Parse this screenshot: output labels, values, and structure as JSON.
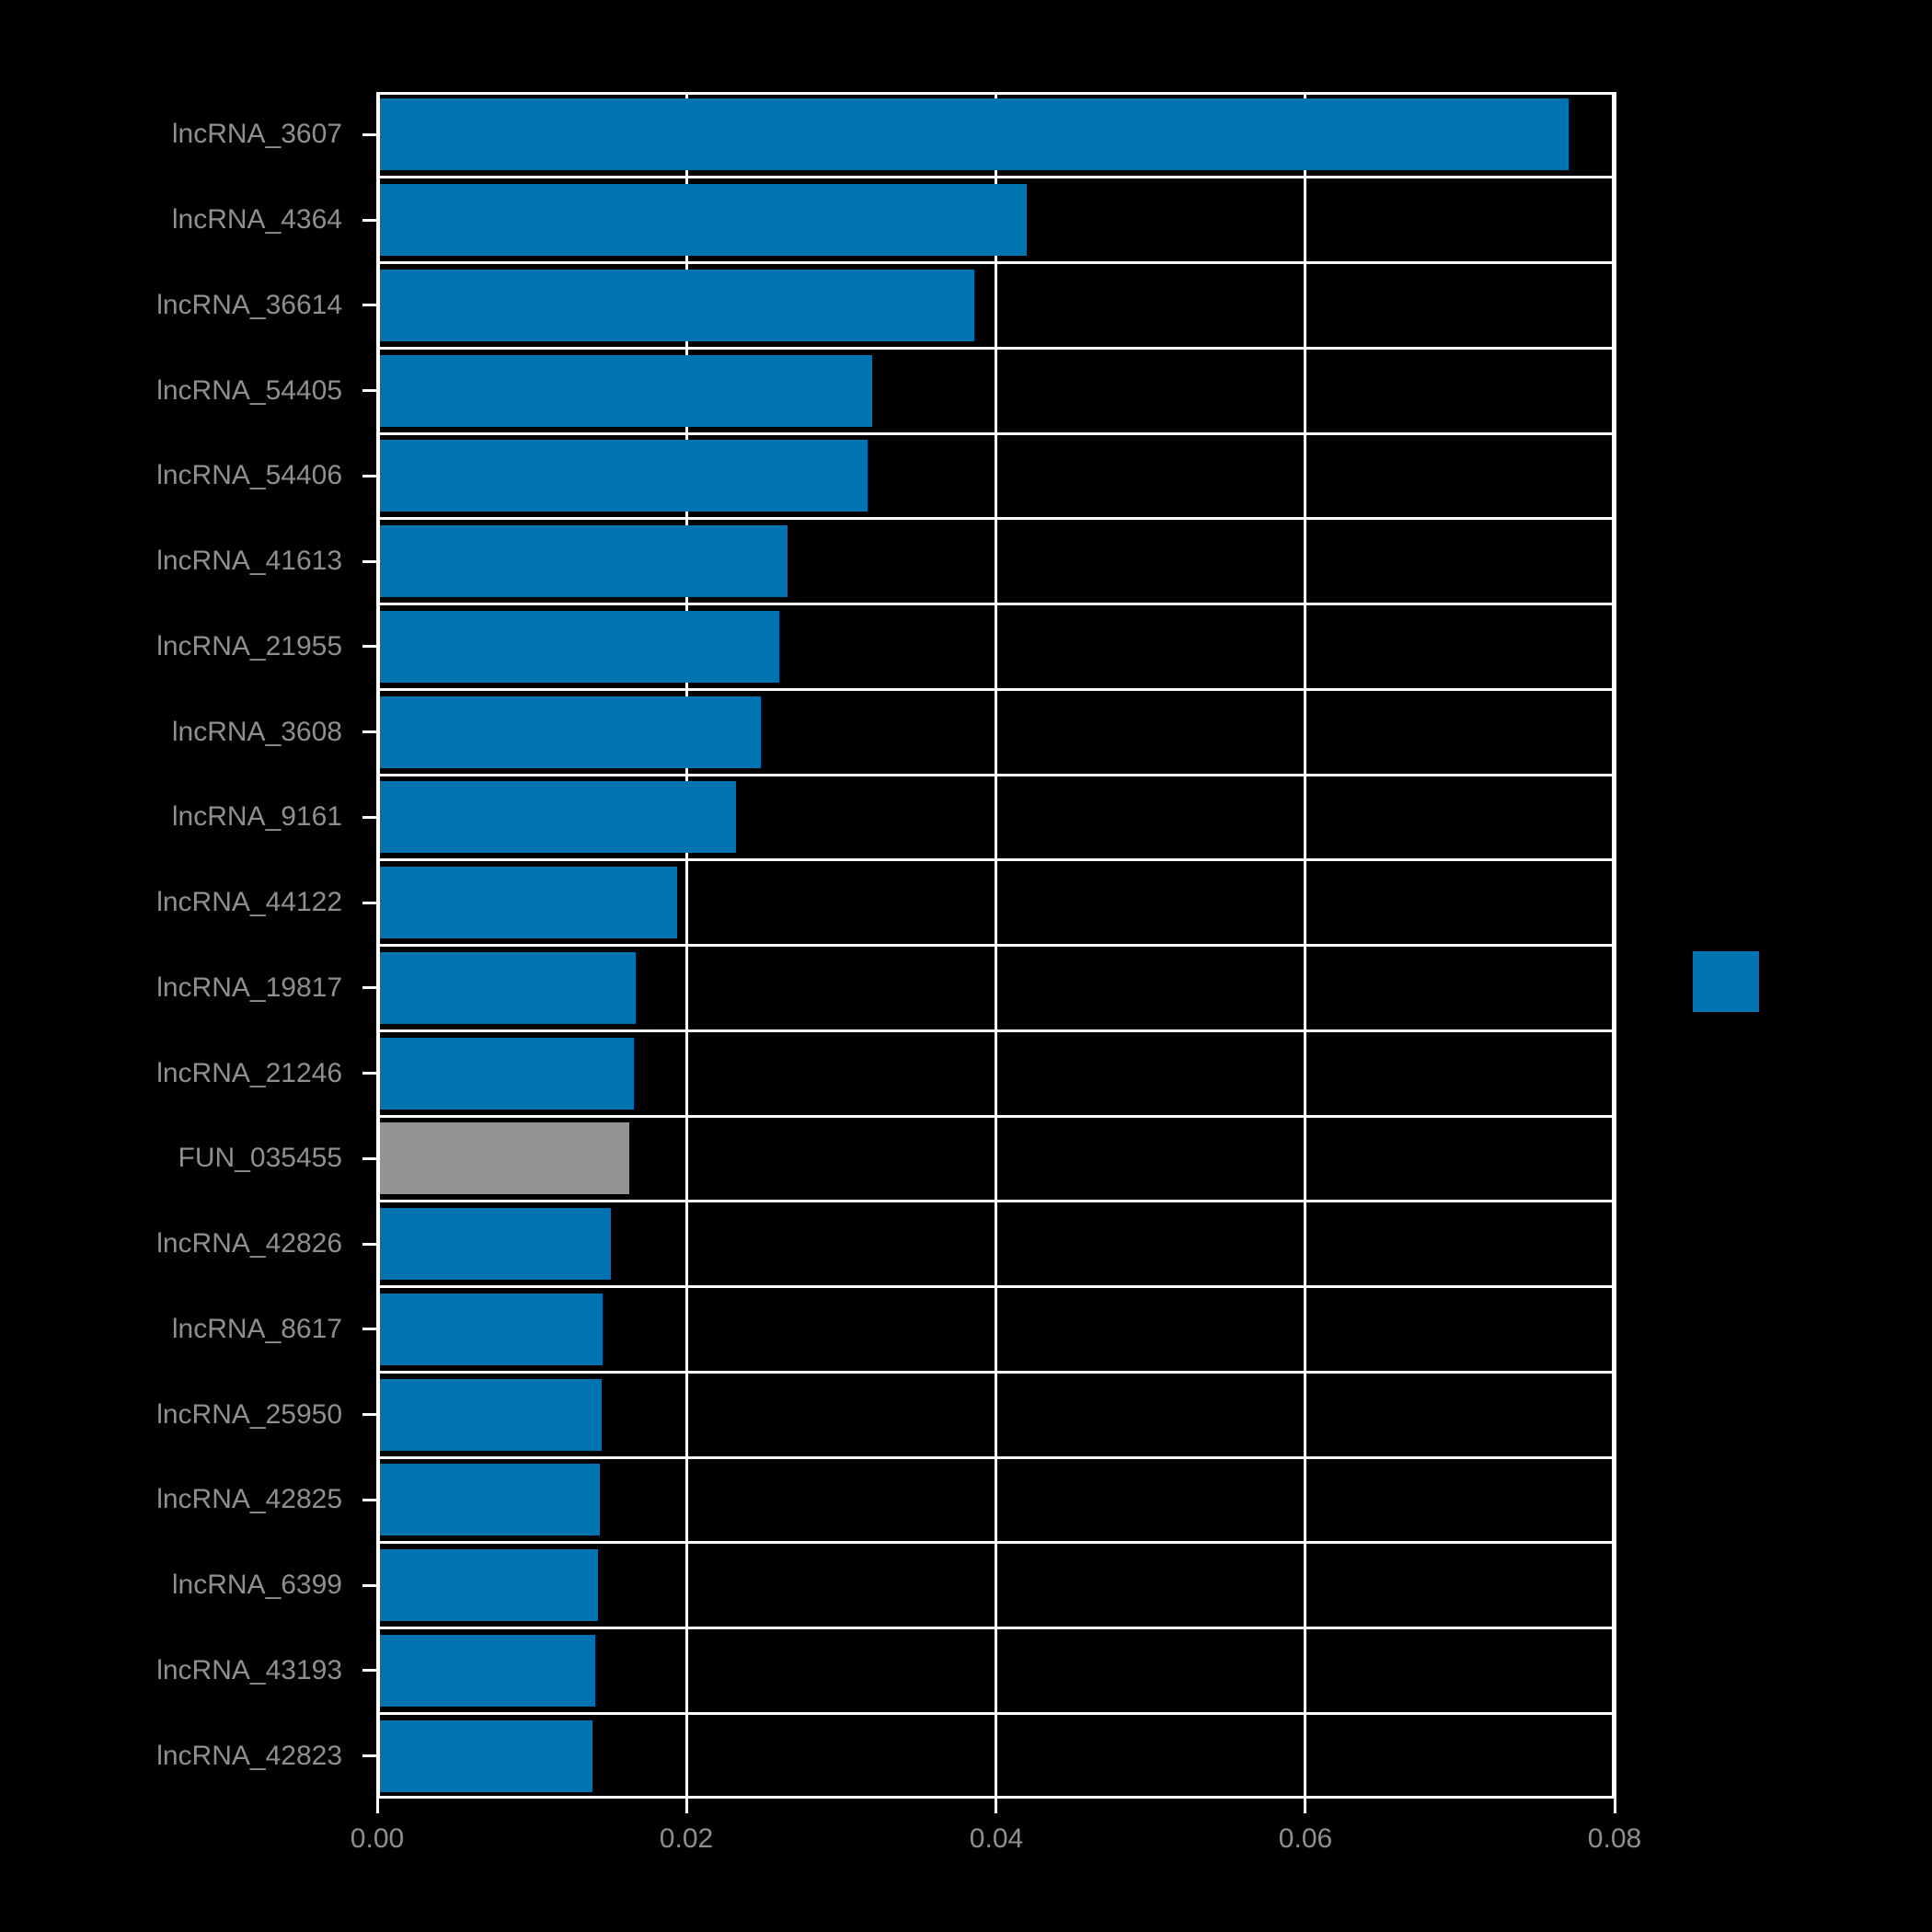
{
  "chart_data": {
    "type": "bar",
    "orientation": "horizontal",
    "title": "",
    "xlabel": "",
    "ylabel": "",
    "categories": [
      "lncRNA_3607",
      "lncRNA_4364",
      "lncRNA_36614",
      "lncRNA_54405",
      "lncRNA_54406",
      "lncRNA_41613",
      "lncRNA_21955",
      "lncRNA_3608",
      "lncRNA_9161",
      "lncRNA_44122",
      "lncRNA_19817",
      "lncRNA_21246",
      "FUN_035455",
      "lncRNA_42826",
      "lncRNA_8617",
      "lncRNA_25950",
      "lncRNA_42825",
      "lncRNA_6399",
      "lncRNA_43193",
      "lncRNA_42823"
    ],
    "values": [
      0.077,
      0.042,
      0.0386,
      0.032,
      0.0317,
      0.0265,
      0.026,
      0.0248,
      0.0232,
      0.0194,
      0.0167,
      0.0166,
      0.0163,
      0.0151,
      0.0146,
      0.0145,
      0.0144,
      0.0143,
      0.0141,
      0.0139
    ],
    "xlim": [
      0,
      0.08
    ],
    "xticks": [
      "0.00",
      "0.02",
      "0.04",
      "0.06",
      "0.08"
    ],
    "xtick_values": [
      0.0,
      0.02,
      0.04,
      0.06,
      0.08
    ],
    "grid": true,
    "colors": {
      "bar_default": "#0173b2",
      "bar_highlight": "#949494",
      "highlight_category": "FUN_035455",
      "background": "#000000",
      "grid": "#ffffff",
      "tick_label": "#8f8f8f"
    },
    "legend": {
      "swatch_color": "#0173b2"
    }
  }
}
